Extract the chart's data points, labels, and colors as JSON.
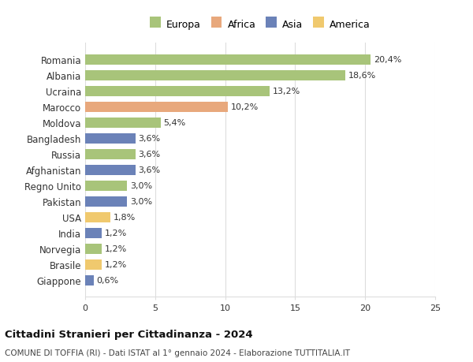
{
  "countries": [
    "Romania",
    "Albania",
    "Ucraina",
    "Marocco",
    "Moldova",
    "Bangladesh",
    "Russia",
    "Afghanistan",
    "Regno Unito",
    "Pakistan",
    "USA",
    "India",
    "Norvegia",
    "Brasile",
    "Giappone"
  ],
  "values": [
    20.4,
    18.6,
    13.2,
    10.2,
    5.4,
    3.6,
    3.6,
    3.6,
    3.0,
    3.0,
    1.8,
    1.2,
    1.2,
    1.2,
    0.6
  ],
  "labels": [
    "20,4%",
    "18,6%",
    "13,2%",
    "10,2%",
    "5,4%",
    "3,6%",
    "3,6%",
    "3,6%",
    "3,0%",
    "3,0%",
    "1,8%",
    "1,2%",
    "1,2%",
    "1,2%",
    "0,6%"
  ],
  "continents": [
    "Europa",
    "Europa",
    "Europa",
    "Africa",
    "Europa",
    "Asia",
    "Europa",
    "Asia",
    "Europa",
    "Asia",
    "America",
    "Asia",
    "Europa",
    "America",
    "Asia"
  ],
  "colors": {
    "Europa": "#a8c47a",
    "Africa": "#e8a87c",
    "Asia": "#6b82b8",
    "America": "#f0c96e"
  },
  "legend_colors": {
    "Europa": "#a8c47a",
    "Africa": "#e8a87c",
    "Asia": "#6b82b8",
    "America": "#f0c96e"
  },
  "xlim": [
    0,
    25
  ],
  "xticks": [
    0,
    5,
    10,
    15,
    20,
    25
  ],
  "title": "Cittadini Stranieri per Cittadinanza - 2024",
  "subtitle": "COMUNE DI TOFFIA (RI) - Dati ISTAT al 1° gennaio 2024 - Elaborazione TUTTITALIA.IT",
  "background_color": "#ffffff",
  "grid_color": "#dddddd",
  "bar_height": 0.65
}
